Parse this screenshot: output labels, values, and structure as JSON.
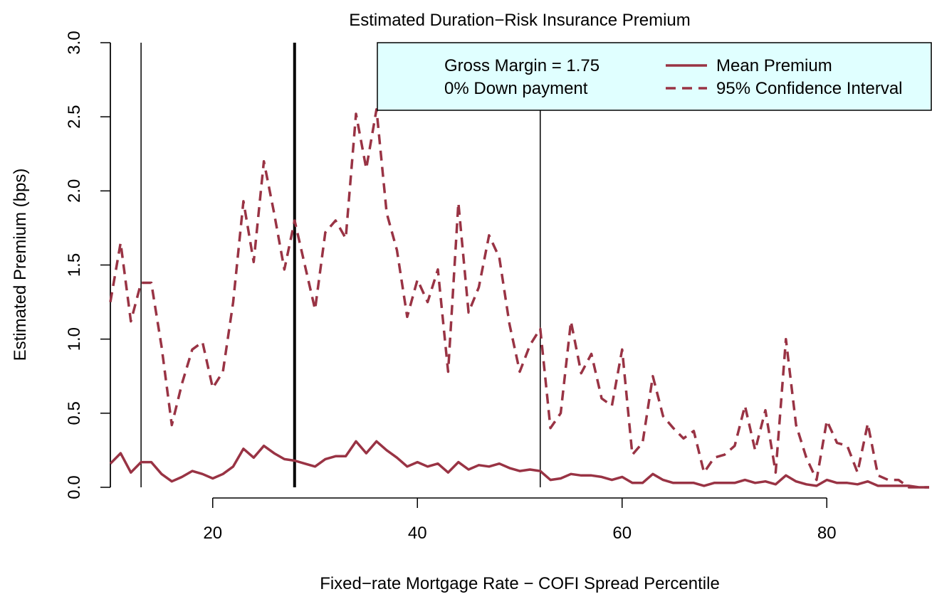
{
  "chart_data": {
    "type": "line",
    "title": "Estimated Duration−Risk Insurance Premium",
    "x_label": "Fixed−rate Mortgage Rate − COFI Spread Percentile",
    "y_label": "Estimated Premium (bps)",
    "annotations": [
      "Gross Margin = 1.75",
      "0% Down payment"
    ],
    "x": [
      10,
      11,
      12,
      13,
      14,
      15,
      16,
      17,
      18,
      19,
      20,
      21,
      22,
      23,
      24,
      25,
      26,
      27,
      28,
      29,
      30,
      31,
      32,
      33,
      34,
      35,
      36,
      37,
      38,
      39,
      40,
      41,
      42,
      43,
      44,
      45,
      46,
      47,
      48,
      49,
      50,
      51,
      52,
      53,
      54,
      55,
      56,
      57,
      58,
      59,
      60,
      61,
      62,
      63,
      64,
      65,
      66,
      67,
      68,
      69,
      70,
      71,
      72,
      73,
      74,
      75,
      76,
      77,
      78,
      79,
      80,
      81,
      82,
      83,
      84,
      85,
      86,
      87,
      88,
      89,
      90
    ],
    "series": [
      {
        "name": "Mean Premium",
        "color": "#993344",
        "dashed": false,
        "values": [
          0.16,
          0.23,
          0.1,
          0.17,
          0.17,
          0.09,
          0.04,
          0.07,
          0.11,
          0.09,
          0.06,
          0.09,
          0.14,
          0.26,
          0.2,
          0.28,
          0.23,
          0.19,
          0.18,
          0.16,
          0.14,
          0.19,
          0.21,
          0.21,
          0.31,
          0.23,
          0.31,
          0.25,
          0.2,
          0.14,
          0.17,
          0.14,
          0.16,
          0.1,
          0.17,
          0.12,
          0.15,
          0.14,
          0.16,
          0.13,
          0.11,
          0.12,
          0.11,
          0.05,
          0.06,
          0.09,
          0.08,
          0.08,
          0.07,
          0.05,
          0.07,
          0.03,
          0.03,
          0.09,
          0.05,
          0.03,
          0.03,
          0.03,
          0.01,
          0.03,
          0.03,
          0.03,
          0.05,
          0.03,
          0.04,
          0.02,
          0.08,
          0.04,
          0.02,
          0.01,
          0.05,
          0.03,
          0.03,
          0.02,
          0.04,
          0.01,
          0.01,
          0.01,
          0.01,
          0.0,
          0.0
        ]
      },
      {
        "name": "95% Confidence Interval",
        "color": "#993344",
        "dashed": true,
        "values": [
          1.25,
          1.65,
          1.12,
          1.38,
          1.38,
          0.95,
          0.42,
          0.7,
          0.93,
          0.98,
          0.67,
          0.78,
          1.25,
          1.93,
          1.52,
          2.2,
          1.85,
          1.47,
          1.8,
          1.5,
          1.2,
          1.72,
          1.8,
          1.68,
          2.52,
          2.15,
          2.55,
          1.85,
          1.6,
          1.15,
          1.4,
          1.25,
          1.47,
          0.78,
          1.92,
          1.18,
          1.35,
          1.7,
          1.55,
          1.1,
          0.78,
          0.96,
          1.07,
          0.4,
          0.5,
          1.12,
          0.77,
          0.9,
          0.6,
          0.55,
          0.93,
          0.22,
          0.3,
          0.75,
          0.48,
          0.4,
          0.33,
          0.38,
          0.1,
          0.2,
          0.22,
          0.28,
          0.55,
          0.25,
          0.52,
          0.1,
          1.0,
          0.42,
          0.2,
          0.05,
          0.45,
          0.3,
          0.28,
          0.1,
          0.43,
          0.08,
          0.05,
          0.05,
          0.0,
          0.0,
          0.0
        ]
      }
    ],
    "vlines": [
      {
        "value": 10,
        "thick": false
      },
      {
        "value": 13,
        "thick": false
      },
      {
        "value": 28,
        "thick": true
      },
      {
        "value": 52,
        "thick": false
      }
    ],
    "xlim": [
      10,
      90
    ],
    "ylim": [
      0,
      3
    ],
    "xticks": [
      20,
      40,
      60,
      80
    ],
    "yticks": [
      {
        "value": 0,
        "label": "0.0"
      },
      0.5,
      {
        "value": 1,
        "label": "1.0"
      },
      1.5,
      {
        "value": 2,
        "label": "2.0"
      },
      2.5,
      {
        "value": 3,
        "label": "3.0"
      }
    ],
    "legend": {
      "position": "top-right",
      "background": "#e0ffff"
    }
  }
}
